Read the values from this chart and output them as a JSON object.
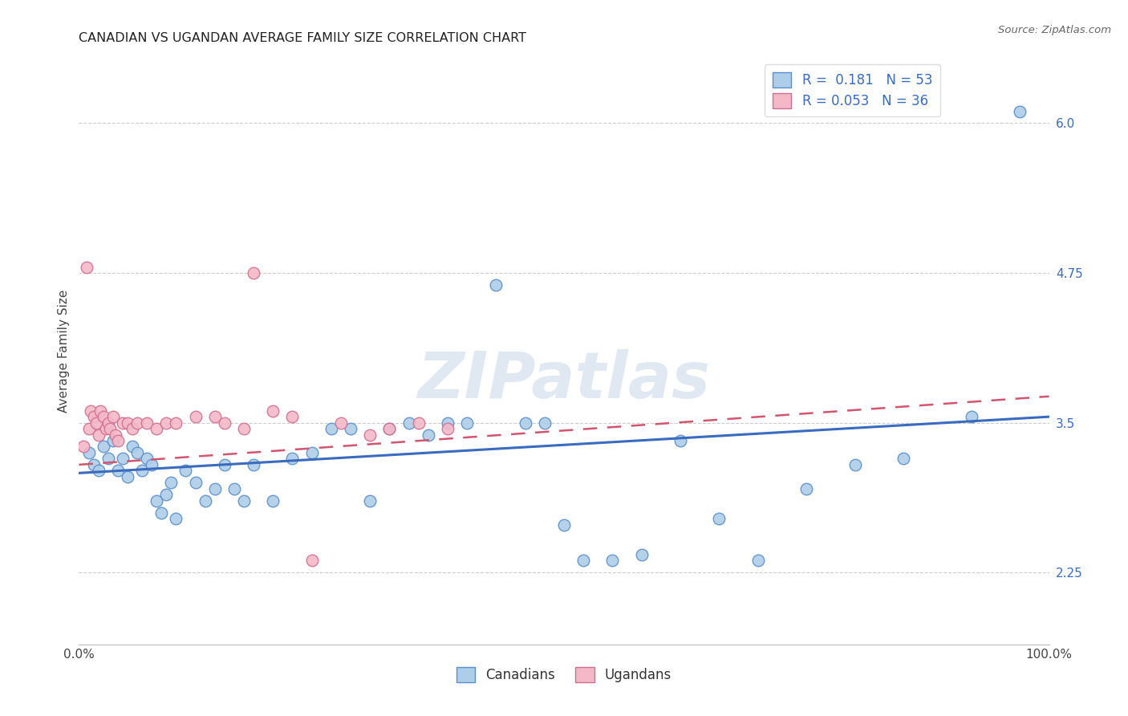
{
  "title": "CANADIAN VS UGANDAN AVERAGE FAMILY SIZE CORRELATION CHART",
  "source": "Source: ZipAtlas.com",
  "ylabel": "Average Family Size",
  "watermark": "ZIPatlas",
  "right_yticks": [
    2.25,
    3.5,
    4.75,
    6.0
  ],
  "xmin": 0.0,
  "xmax": 100.0,
  "ymin": 1.65,
  "ymax": 6.55,
  "canadian_R": 0.181,
  "canadian_N": 53,
  "ugandan_R": 0.053,
  "ugandan_N": 36,
  "canadian_color": "#aecde8",
  "ugandan_color": "#f4b8c8",
  "canadian_edge": "#5b8fc9",
  "ugandan_edge": "#d07090",
  "canadian_line_color": "#3a6bbf",
  "ugandan_line_color": "#d05570",
  "can_line_x0": 0.0,
  "can_line_y0": 3.08,
  "can_line_x1": 100.0,
  "can_line_y1": 3.55,
  "uga_line_x0": 0.0,
  "uga_line_y0": 3.15,
  "uga_line_x1": 100.0,
  "uga_line_y1": 3.72,
  "canadian_x": [
    1.0,
    1.5,
    2.0,
    2.5,
    3.0,
    3.5,
    4.0,
    4.5,
    5.0,
    5.5,
    6.0,
    6.5,
    7.0,
    7.5,
    8.0,
    8.5,
    9.0,
    9.5,
    10.0,
    11.0,
    12.0,
    13.0,
    14.0,
    15.0,
    16.0,
    17.0,
    18.0,
    20.0,
    22.0,
    24.0,
    26.0,
    28.0,
    30.0,
    32.0,
    34.0,
    36.0,
    38.0,
    40.0,
    43.0,
    46.0,
    48.0,
    50.0,
    52.0,
    55.0,
    58.0,
    62.0,
    66.0,
    70.0,
    75.0,
    80.0,
    85.0,
    92.0,
    97.0
  ],
  "canadian_y": [
    3.25,
    3.15,
    3.1,
    3.3,
    3.2,
    3.35,
    3.1,
    3.2,
    3.05,
    3.3,
    3.25,
    3.1,
    3.2,
    3.15,
    2.85,
    2.75,
    2.9,
    3.0,
    2.7,
    3.1,
    3.0,
    2.85,
    2.95,
    3.15,
    2.95,
    2.85,
    3.15,
    2.85,
    3.2,
    3.25,
    3.45,
    3.45,
    2.85,
    3.45,
    3.5,
    3.4,
    3.5,
    3.5,
    4.65,
    3.5,
    3.5,
    2.65,
    2.35,
    2.35,
    2.4,
    3.35,
    2.7,
    2.35,
    2.95,
    3.15,
    3.2,
    3.55,
    6.1
  ],
  "ugandan_x": [
    0.5,
    0.8,
    1.0,
    1.2,
    1.5,
    1.8,
    2.0,
    2.2,
    2.5,
    2.8,
    3.0,
    3.2,
    3.5,
    3.8,
    4.0,
    4.5,
    5.0,
    5.5,
    6.0,
    7.0,
    8.0,
    9.0,
    10.0,
    12.0,
    14.0,
    15.0,
    17.0,
    18.0,
    20.0,
    22.0,
    24.0,
    27.0,
    30.0,
    32.0,
    35.0,
    38.0
  ],
  "ugandan_y": [
    3.3,
    4.8,
    3.45,
    3.6,
    3.55,
    3.5,
    3.4,
    3.6,
    3.55,
    3.45,
    3.5,
    3.45,
    3.55,
    3.4,
    3.35,
    3.5,
    3.5,
    3.45,
    3.5,
    3.5,
    3.45,
    3.5,
    3.5,
    3.55,
    3.55,
    3.5,
    3.45,
    4.75,
    3.6,
    3.55,
    2.35,
    3.5,
    3.4,
    3.45,
    3.5,
    3.45
  ]
}
